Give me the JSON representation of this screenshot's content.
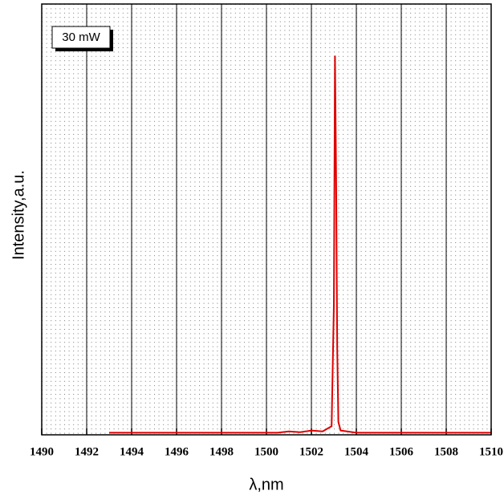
{
  "chart_data": {
    "type": "line",
    "xlabel": "λ,nm",
    "ylabel": "Intensity,a.u.",
    "annotation": "30 mW",
    "x": [
      1493,
      1500.5,
      1501,
      1501.5,
      1502,
      1502.5,
      1502.9,
      1503.0,
      1503.05,
      1503.1,
      1503.15,
      1503.2,
      1503.3,
      1504,
      1510
    ],
    "series": [
      {
        "name": null,
        "color": "#e00000",
        "values": [
          0.005,
          0.005,
          0.008,
          0.006,
          0.01,
          0.008,
          0.02,
          0.3,
          0.88,
          0.6,
          0.2,
          0.03,
          0.01,
          0.005,
          0.005
        ]
      }
    ],
    "xlim": [
      1490,
      1510
    ],
    "xticks": [
      1490,
      1492,
      1494,
      1496,
      1498,
      1500,
      1502,
      1504,
      1506,
      1508,
      1510
    ],
    "ylim": [
      0,
      1
    ],
    "grid": true
  }
}
